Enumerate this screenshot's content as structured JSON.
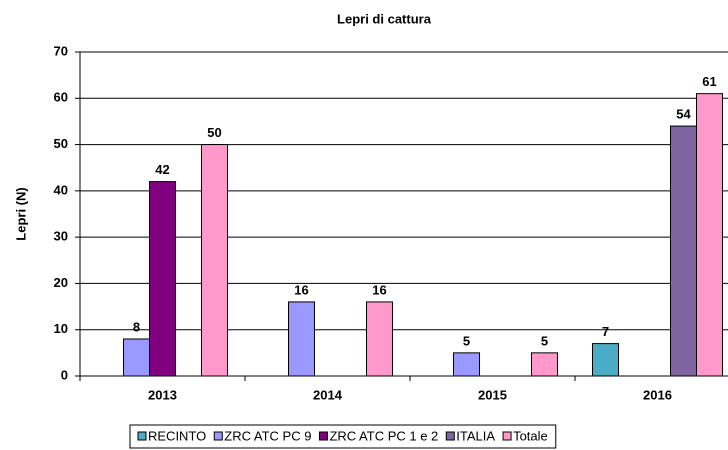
{
  "chart_data": {
    "type": "bar",
    "title": "Lepri di cattura",
    "y_label": "Lepri (N)",
    "categories": [
      "2013",
      "2014",
      "2015",
      "2016"
    ],
    "series": [
      {
        "name": "RECINTO",
        "color": "#4bacc6",
        "values": [
          null,
          null,
          null,
          7
        ]
      },
      {
        "name": "ZRC ATC PC 9",
        "color": "#9999ff",
        "values": [
          8,
          16,
          5,
          null
        ]
      },
      {
        "name": "ZRC ATC PC 1 e 2",
        "color": "#800080",
        "values": [
          42,
          null,
          null,
          null
        ]
      },
      {
        "name": "ITALIA",
        "color": "#8064a2",
        "values": [
          null,
          null,
          null,
          54
        ]
      },
      {
        "name": "Totale",
        "color": "#ff99cc",
        "values": [
          50,
          16,
          5,
          61
        ]
      }
    ],
    "ylim": [
      0,
      70
    ],
    "yticks": [
      0,
      10,
      20,
      30,
      40,
      50,
      60,
      70
    ],
    "grid": true,
    "legend": "bottom"
  }
}
